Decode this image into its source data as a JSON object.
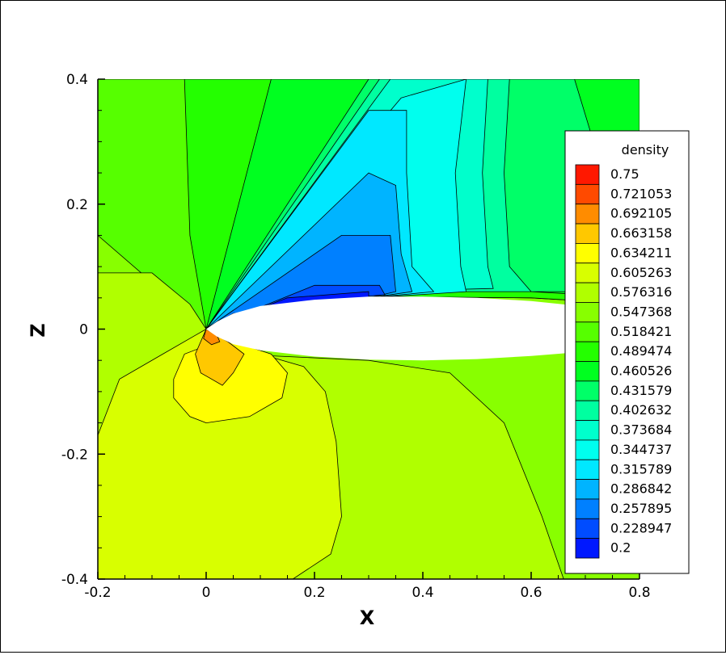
{
  "chart_data": {
    "type": "heatmap",
    "title": "",
    "xlabel": "X",
    "ylabel": "Z",
    "xlim": [
      -0.2,
      0.8
    ],
    "ylim": [
      -0.4,
      0.4
    ],
    "x_ticks": [
      "-0.2",
      "0",
      "0.2",
      "0.4",
      "0.6",
      "0.8"
    ],
    "y_ticks": [
      "-0.4",
      "-0.2",
      "0",
      "0.2",
      "0.4"
    ],
    "x_tick_values": [
      -0.2,
      0,
      0.2,
      0.4,
      0.6,
      0.8
    ],
    "y_tick_values": [
      -0.4,
      -0.2,
      0,
      0.2,
      0.4
    ],
    "grid": false,
    "legend": {
      "title": "density",
      "placement": "right",
      "levels": [
        "0.75",
        "0.721053",
        "0.692105",
        "0.663158",
        "0.634211",
        "0.605263",
        "0.576316",
        "0.547368",
        "0.518421",
        "0.489474",
        "0.460526",
        "0.431579",
        "0.402632",
        "0.373684",
        "0.344737",
        "0.315789",
        "0.286842",
        "0.257895",
        "0.228947",
        "0.2"
      ],
      "colors": [
        "#ff1800",
        "#ff4a00",
        "#ff8c00",
        "#ffc800",
        "#ffff00",
        "#d8ff00",
        "#b0ff00",
        "#88ff00",
        "#56ff00",
        "#24ff00",
        "#00ff20",
        "#00ff68",
        "#00ffa0",
        "#00ffcc",
        "#00ffee",
        "#00e8ff",
        "#00b4ff",
        "#0080ff",
        "#004cff",
        "#0018ff"
      ]
    },
    "regions": [
      {
        "level": "0.547368",
        "polygon": [
          [
            -0.2,
            -0.4
          ],
          [
            0.8,
            -0.4
          ],
          [
            0.8,
            0.4
          ],
          [
            -0.2,
            0.4
          ]
        ]
      },
      {
        "level": "0.518421",
        "polygon": [
          [
            -0.2,
            0.4
          ],
          [
            0.8,
            0.4
          ],
          [
            0.8,
            0.04
          ],
          [
            0.6,
            0.05
          ],
          [
            0.3,
            0.052
          ],
          [
            0.05,
            0.03
          ],
          [
            0.0,
            0.0
          ],
          [
            -0.08,
            0.06
          ],
          [
            -0.2,
            0.15
          ]
        ]
      },
      {
        "level": "0.489474",
        "polygon": [
          [
            -0.04,
            0.4
          ],
          [
            0.8,
            0.4
          ],
          [
            0.8,
            0.04
          ],
          [
            0.6,
            0.05
          ],
          [
            0.3,
            0.052
          ],
          [
            0.05,
            0.03
          ],
          [
            0.0,
            0.0
          ],
          [
            -0.03,
            0.15
          ]
        ]
      },
      {
        "level": "0.460526",
        "polygon": [
          [
            0.12,
            0.4
          ],
          [
            0.8,
            0.4
          ],
          [
            0.8,
            0.05
          ],
          [
            0.6,
            0.06
          ],
          [
            0.3,
            0.06
          ],
          [
            0.05,
            0.03
          ],
          [
            0.0,
            0.0
          ]
        ]
      },
      {
        "level": "0.431579",
        "polygon": [
          [
            0.3,
            0.4
          ],
          [
            0.68,
            0.4
          ],
          [
            0.75,
            0.2
          ],
          [
            0.8,
            0.15
          ],
          [
            0.8,
            0.06
          ],
          [
            0.6,
            0.06
          ],
          [
            0.3,
            0.06
          ],
          [
            0.05,
            0.03
          ],
          [
            0.0,
            0.0
          ]
        ]
      },
      {
        "level": "0.402632",
        "polygon": [
          [
            0.32,
            0.4
          ],
          [
            0.56,
            0.4
          ],
          [
            0.55,
            0.25
          ],
          [
            0.56,
            0.1
          ],
          [
            0.6,
            0.06
          ],
          [
            0.3,
            0.06
          ],
          [
            0.05,
            0.03
          ],
          [
            0.0,
            0.0
          ]
        ]
      },
      {
        "level": "0.373684",
        "polygon": [
          [
            0.34,
            0.4
          ],
          [
            0.52,
            0.4
          ],
          [
            0.51,
            0.25
          ],
          [
            0.52,
            0.1
          ],
          [
            0.53,
            0.065
          ],
          [
            0.3,
            0.06
          ],
          [
            0.05,
            0.03
          ],
          [
            0.0,
            0.0
          ]
        ]
      },
      {
        "level": "0.344737",
        "polygon": [
          [
            0.36,
            0.37
          ],
          [
            0.48,
            0.4
          ],
          [
            0.46,
            0.25
          ],
          [
            0.47,
            0.1
          ],
          [
            0.48,
            0.06
          ],
          [
            0.3,
            0.05
          ],
          [
            0.05,
            0.03
          ],
          [
            0.0,
            0.0
          ]
        ]
      },
      {
        "level": "0.315789",
        "polygon": [
          [
            0.3,
            0.35
          ],
          [
            0.37,
            0.35
          ],
          [
            0.37,
            0.25
          ],
          [
            0.38,
            0.1
          ],
          [
            0.42,
            0.06
          ],
          [
            0.3,
            0.05
          ],
          [
            0.05,
            0.03
          ],
          [
            0.0,
            0.0
          ]
        ]
      },
      {
        "level": "0.286842",
        "polygon": [
          [
            0.3,
            0.25
          ],
          [
            0.35,
            0.23
          ],
          [
            0.36,
            0.12
          ],
          [
            0.38,
            0.06
          ],
          [
            0.3,
            0.05
          ],
          [
            0.05,
            0.03
          ],
          [
            0.0,
            0.0
          ]
        ]
      },
      {
        "level": "0.257895",
        "polygon": [
          [
            0.25,
            0.15
          ],
          [
            0.34,
            0.15
          ],
          [
            0.35,
            0.06
          ],
          [
            0.3,
            0.05
          ],
          [
            0.05,
            0.025
          ],
          [
            0.0,
            0.0
          ]
        ]
      },
      {
        "level": "0.228947",
        "polygon": [
          [
            0.2,
            0.07
          ],
          [
            0.32,
            0.07
          ],
          [
            0.33,
            0.055
          ],
          [
            0.2,
            0.045
          ],
          [
            0.05,
            0.02
          ],
          [
            0.0,
            0.0
          ]
        ]
      },
      {
        "level": "0.2",
        "polygon": [
          [
            0.15,
            0.05
          ],
          [
            0.3,
            0.06
          ],
          [
            0.3,
            0.05
          ],
          [
            0.15,
            0.04
          ],
          [
            0.05,
            0.02
          ],
          [
            0.0,
            0.0
          ]
        ]
      },
      {
        "level": "0.576316",
        "polygon": [
          [
            -0.2,
            0.09
          ],
          [
            -0.1,
            0.09
          ],
          [
            -0.03,
            0.04
          ],
          [
            0.0,
            0.0
          ],
          [
            0.05,
            -0.04
          ],
          [
            0.3,
            -0.05
          ],
          [
            0.45,
            -0.07
          ],
          [
            0.55,
            -0.15
          ],
          [
            0.62,
            -0.3
          ],
          [
            0.66,
            -0.4
          ],
          [
            -0.2,
            -0.4
          ]
        ]
      },
      {
        "level": "0.605263",
        "polygon": [
          [
            -0.2,
            -0.4
          ],
          [
            -0.2,
            -0.17
          ],
          [
            -0.16,
            -0.08
          ],
          [
            -0.08,
            -0.04
          ],
          [
            -0.02,
            -0.01
          ],
          [
            0.0,
            0.0
          ],
          [
            0.03,
            -0.02
          ],
          [
            0.1,
            -0.04
          ],
          [
            0.18,
            -0.06
          ],
          [
            0.22,
            -0.1
          ],
          [
            0.24,
            -0.18
          ],
          [
            0.25,
            -0.3
          ],
          [
            0.23,
            -0.36
          ],
          [
            0.16,
            -0.4
          ]
        ]
      },
      {
        "level": "0.634211",
        "polygon": [
          [
            0.02,
            -0.02
          ],
          [
            -0.04,
            -0.04
          ],
          [
            -0.06,
            -0.08
          ],
          [
            -0.06,
            -0.11
          ],
          [
            -0.03,
            -0.14
          ],
          [
            0.0,
            -0.15
          ],
          [
            0.08,
            -0.14
          ],
          [
            0.14,
            -0.11
          ],
          [
            0.15,
            -0.07
          ],
          [
            0.12,
            -0.04
          ],
          [
            0.05,
            -0.02
          ]
        ]
      },
      {
        "level": "0.663158",
        "polygon": [
          [
            0.0,
            0.0
          ],
          [
            -0.02,
            -0.04
          ],
          [
            -0.01,
            -0.07
          ],
          [
            0.03,
            -0.09
          ],
          [
            0.05,
            -0.07
          ],
          [
            0.07,
            -0.04
          ],
          [
            0.04,
            -0.02
          ]
        ]
      },
      {
        "level": "0.692105",
        "polygon": [
          [
            0.0,
            0.0
          ],
          [
            -0.005,
            -0.015
          ],
          [
            0.01,
            -0.025
          ],
          [
            0.025,
            -0.02
          ],
          [
            0.02,
            -0.01
          ]
        ]
      }
    ],
    "airfoil": [
      [
        0.0,
        0.0
      ],
      [
        0.02,
        0.012
      ],
      [
        0.05,
        0.025
      ],
      [
        0.1,
        0.037
      ],
      [
        0.2,
        0.047
      ],
      [
        0.3,
        0.052
      ],
      [
        0.4,
        0.052
      ],
      [
        0.5,
        0.05
      ],
      [
        0.6,
        0.045
      ],
      [
        0.7,
        0.036
      ],
      [
        0.8,
        0.029
      ],
      [
        0.8,
        -0.029
      ],
      [
        0.7,
        -0.036
      ],
      [
        0.6,
        -0.043
      ],
      [
        0.5,
        -0.048
      ],
      [
        0.4,
        -0.05
      ],
      [
        0.3,
        -0.049
      ],
      [
        0.2,
        -0.044
      ],
      [
        0.1,
        -0.034
      ],
      [
        0.05,
        -0.024
      ],
      [
        0.02,
        -0.012
      ]
    ]
  }
}
